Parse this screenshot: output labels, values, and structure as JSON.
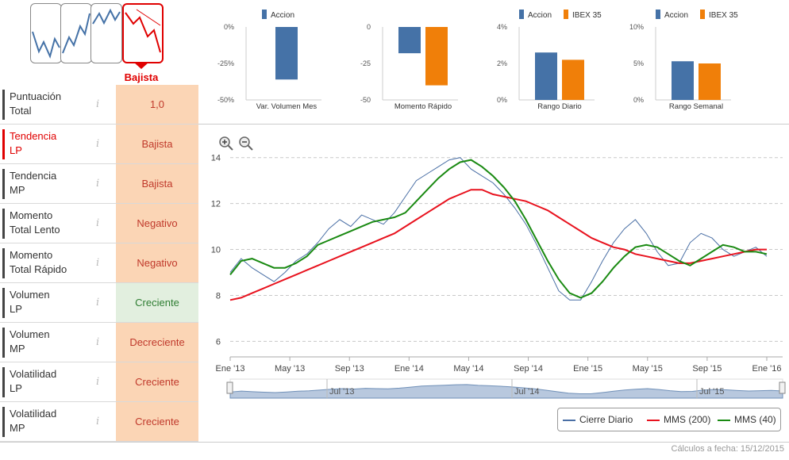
{
  "trend_icons": [
    {
      "name": "Lateral",
      "selected": false
    },
    {
      "name": "Alcista",
      "selected": false
    },
    {
      "name": "Lateral alcista",
      "selected": false
    },
    {
      "name": "Bajista",
      "selected": true
    }
  ],
  "trend_selected_label": "Bajista",
  "indicators": [
    {
      "label1": "Puntuación",
      "label2": "Total",
      "value": "1,0",
      "positive": false,
      "active": false
    },
    {
      "label1": "Tendencia",
      "label2": "LP",
      "value": "Bajista",
      "positive": false,
      "active": true
    },
    {
      "label1": "Tendencia",
      "label2": "MP",
      "value": "Bajista",
      "positive": false,
      "active": false
    },
    {
      "label1": "Momento",
      "label2": "Total Lento",
      "value": "Negativo",
      "positive": false,
      "active": false
    },
    {
      "label1": "Momento",
      "label2": "Total Rápido",
      "value": "Negativo",
      "positive": false,
      "active": false
    },
    {
      "label1": "Volumen",
      "label2": "LP",
      "value": "Creciente",
      "positive": true,
      "active": false
    },
    {
      "label1": "Volumen",
      "label2": "MP",
      "value": "Decreciente",
      "positive": false,
      "active": false
    },
    {
      "label1": "Volatilidad",
      "label2": "LP",
      "value": "Creciente",
      "positive": false,
      "active": false
    },
    {
      "label1": "Volatilidad",
      "label2": "MP",
      "value": "Creciente",
      "positive": false,
      "active": false
    }
  ],
  "info_glyph": "i",
  "colors": {
    "accion": "#4572a7",
    "ibex": "#f07f09",
    "diario": "#4a6fa5",
    "mms200": "#e8121e",
    "mms40": "#1a8a12",
    "bearish": "#e00000"
  },
  "chart_data": [
    {
      "type": "bar",
      "title": "Var. Volumen Mes",
      "series": [
        {
          "name": "Accion",
          "values": [
            -36
          ]
        }
      ],
      "yticks": [
        "0%",
        "-25%",
        "-50%"
      ],
      "ylim": [
        -50,
        0
      ]
    },
    {
      "type": "bar",
      "title": "Momento Rápido",
      "series": [
        {
          "name": "Accion",
          "values": [
            -18
          ]
        },
        {
          "name": "IBEX 35",
          "values": [
            -40
          ]
        }
      ],
      "yticks": [
        "0",
        "-25",
        "-50"
      ],
      "ylim": [
        -50,
        0
      ]
    },
    {
      "type": "bar",
      "title": "Rango Diario",
      "series": [
        {
          "name": "Accion",
          "values": [
            2.6
          ]
        },
        {
          "name": "IBEX 35",
          "values": [
            2.2
          ]
        }
      ],
      "yticks": [
        "4%",
        "2%",
        "0%"
      ],
      "ylim": [
        0,
        4
      ]
    },
    {
      "type": "bar",
      "title": "Rango Semanal",
      "series": [
        {
          "name": "Accion",
          "values": [
            5.3
          ]
        },
        {
          "name": "IBEX 35",
          "values": [
            5.0
          ]
        }
      ],
      "yticks": [
        "10%",
        "5%",
        "0%"
      ],
      "ylim": [
        0,
        10
      ]
    },
    {
      "type": "line",
      "title": "",
      "x_labels": [
        "Ene '13",
        "May '13",
        "Sep '13",
        "Ene '14",
        "May '14",
        "Sep '14",
        "Ene '15",
        "May '15",
        "Sep '15",
        "Ene '16"
      ],
      "y_ticks": [
        6,
        8,
        10,
        12,
        14
      ],
      "ylim": [
        5.6,
        14.3
      ],
      "series": [
        {
          "name": "Cierre Diario",
          "values": [
            9.0,
            9.6,
            9.2,
            8.9,
            8.6,
            9.0,
            9.5,
            9.8,
            10.3,
            10.9,
            11.3,
            11.0,
            11.5,
            11.3,
            11.1,
            11.6,
            12.3,
            13.0,
            13.3,
            13.6,
            13.9,
            14.0,
            13.5,
            13.2,
            12.9,
            12.4,
            11.8,
            11.1,
            10.2,
            9.2,
            8.2,
            7.8,
            7.8,
            8.6,
            9.5,
            10.3,
            10.9,
            11.3,
            10.7,
            9.9,
            9.3,
            9.4,
            10.3,
            10.7,
            10.5,
            10.0,
            9.7,
            9.9,
            10.1,
            9.7
          ]
        },
        {
          "name": "MMS (200)",
          "values": [
            7.8,
            7.9,
            8.1,
            8.3,
            8.5,
            8.7,
            8.9,
            9.1,
            9.3,
            9.5,
            9.7,
            9.9,
            10.1,
            10.3,
            10.5,
            10.7,
            11.0,
            11.3,
            11.6,
            11.9,
            12.2,
            12.4,
            12.6,
            12.6,
            12.4,
            12.3,
            12.2,
            12.1,
            11.9,
            11.7,
            11.4,
            11.1,
            10.8,
            10.5,
            10.3,
            10.1,
            10.0,
            9.8,
            9.7,
            9.6,
            9.5,
            9.4,
            9.4,
            9.5,
            9.6,
            9.7,
            9.8,
            9.9,
            10.0,
            10.0
          ]
        },
        {
          "name": "MMS (40)",
          "values": [
            8.9,
            9.5,
            9.6,
            9.4,
            9.2,
            9.2,
            9.4,
            9.7,
            10.2,
            10.4,
            10.6,
            10.8,
            11.0,
            11.2,
            11.3,
            11.4,
            11.6,
            12.1,
            12.6,
            13.1,
            13.5,
            13.8,
            13.9,
            13.6,
            13.2,
            12.7,
            12.1,
            11.3,
            10.4,
            9.5,
            8.7,
            8.1,
            7.9,
            8.1,
            8.6,
            9.2,
            9.7,
            10.1,
            10.2,
            10.1,
            9.8,
            9.5,
            9.3,
            9.6,
            9.9,
            10.2,
            10.1,
            9.9,
            9.9,
            9.8
          ]
        }
      ],
      "navigator_labels": [
        "Jul '13",
        "Jul '14",
        "Jul '15"
      ]
    }
  ],
  "legend": {
    "items": [
      "Cierre Diario",
      "MMS (200)",
      "MMS (40)"
    ]
  },
  "footer": "Cálculos a fecha: 15/12/2015"
}
